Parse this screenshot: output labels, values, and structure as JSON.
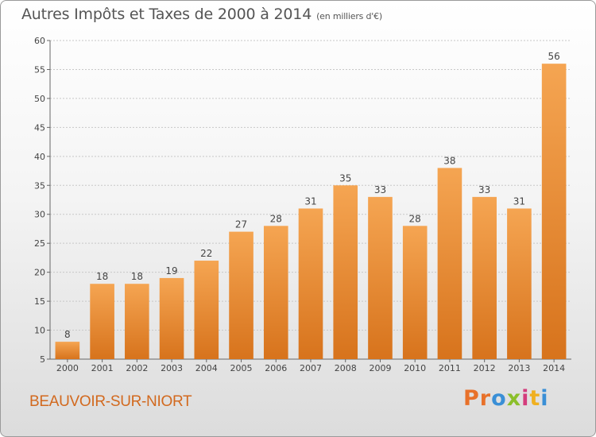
{
  "header": {
    "title": "Autres Impôts et Taxes de 2000 à 2014",
    "unit": "(en milliers d'€)"
  },
  "footer": {
    "commune": "BEAUVOIR-SUR-NIORT",
    "logo_text": "Proxiti",
    "logo_colors": [
      "#e8712a",
      "#e8712a",
      "#3a8fd6",
      "#8bbf2a",
      "#d43c7c",
      "#f0b020",
      "#3a8fd6"
    ]
  },
  "colors": {
    "bar_top": "#f5a552",
    "bar_bottom": "#d7731c",
    "grid": "#c8c8c8",
    "title": "#555555",
    "commune": "#d2691e"
  },
  "chart_data": {
    "type": "bar",
    "title": "Autres Impôts et Taxes de 2000 à 2014",
    "subtitle": "(en milliers d'€)",
    "xlabel": "",
    "ylabel": "",
    "categories": [
      "2000",
      "2001",
      "2002",
      "2003",
      "2004",
      "2005",
      "2006",
      "2007",
      "2008",
      "2009",
      "2010",
      "2011",
      "2012",
      "2013",
      "2014"
    ],
    "values": [
      8,
      18,
      18,
      19,
      22,
      27,
      28,
      31,
      35,
      33,
      28,
      38,
      33,
      31,
      56
    ],
    "ylim": [
      5,
      60
    ],
    "yticks": [
      5,
      10,
      15,
      20,
      25,
      30,
      35,
      40,
      45,
      50,
      55,
      60
    ],
    "grid": true,
    "data_labels": true
  }
}
